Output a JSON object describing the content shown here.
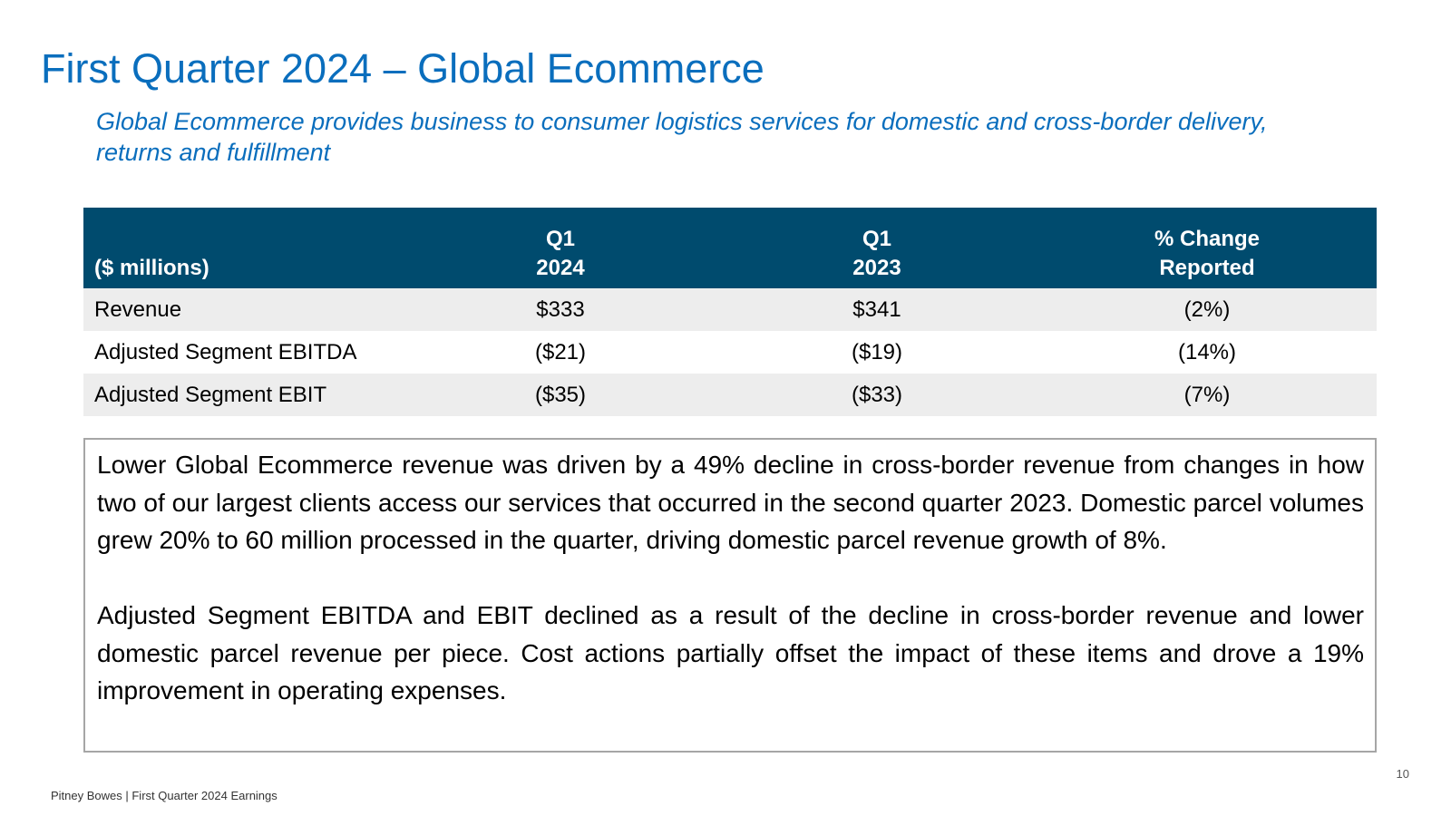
{
  "slide": {
    "title": "First Quarter 2024 – Global Ecommerce",
    "subtitle": "Global Ecommerce provides business to consumer logistics services for domestic and cross-border delivery, returns and fulfillment"
  },
  "table": {
    "headers": {
      "label": "($ millions)",
      "q1_2024_line1": "Q1",
      "q1_2024_line2": "2024",
      "q1_2023_line1": "Q1",
      "q1_2023_line2": "2023",
      "change_line1": "% Change",
      "change_line2": "Reported"
    },
    "rows": [
      {
        "label": "Revenue",
        "q1_2024": "$333",
        "q1_2023": "$341",
        "change": "(2%)"
      },
      {
        "label": "Adjusted Segment EBITDA",
        "q1_2024": "($21)",
        "q1_2023": "($19)",
        "change": "(14%)"
      },
      {
        "label": "Adjusted Segment EBIT",
        "q1_2024": "($35)",
        "q1_2023": "($33)",
        "change": "(7%)"
      }
    ]
  },
  "commentary": {
    "paragraph1": "Lower Global Ecommerce revenue was driven by a 49% decline in cross-border revenue from changes in how two of our largest clients access our services that occurred in the second quarter 2023. Domestic parcel volumes grew 20% to 60 million processed in the quarter, driving domestic parcel revenue growth of 8%.",
    "paragraph2": "Adjusted Segment EBITDA and EBIT declined as a result of the decline in cross-border revenue and lower domestic parcel revenue per piece. Cost actions partially offset the impact of these items and drove a 19% improvement in operating expenses."
  },
  "footer": {
    "text": "Pitney Bowes | First Quarter 2024 Earnings",
    "page_number": "10"
  },
  "colors": {
    "title_blue": "#0A6EBD",
    "header_navy": "#004B6E",
    "row_shade": "#EDEDED",
    "box_border": "#A6A6A6"
  }
}
